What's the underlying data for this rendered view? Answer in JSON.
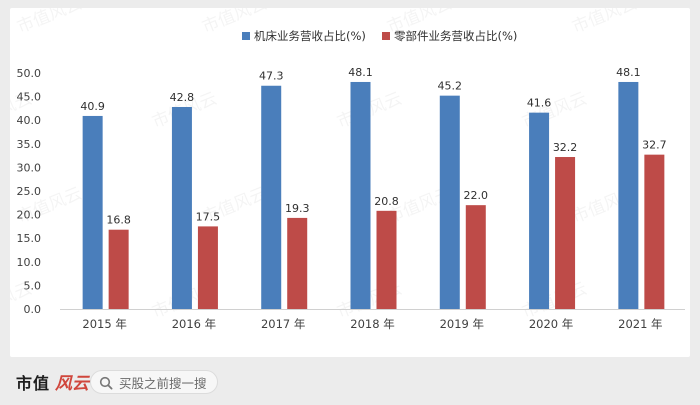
{
  "chart_data": {
    "type": "bar",
    "categories": [
      "2015 年",
      "2016 年",
      "2017 年",
      "2018 年",
      "2019 年",
      "2020 年",
      "2021 年"
    ],
    "series": [
      {
        "name": "机床业务营收占比(%)",
        "color": "#4a7ebb",
        "values": [
          40.9,
          42.8,
          47.3,
          48.1,
          45.2,
          41.6,
          48.1
        ]
      },
      {
        "name": "零部件业务营收占比(%)",
        "color": "#be4b48",
        "values": [
          16.8,
          17.5,
          19.3,
          20.8,
          22.0,
          32.2,
          32.7
        ]
      }
    ],
    "value_labels": [
      [
        "40.9",
        "42.8",
        "47.3",
        "48.1",
        "45.2",
        "41.6",
        "48.1"
      ],
      [
        "16.8",
        "17.5",
        "19.3",
        "20.8",
        "22.0",
        "32.2",
        "32.7"
      ]
    ],
    "yticks": [
      "0.0",
      "5.0",
      "10.0",
      "15.0",
      "20.0",
      "25.0",
      "30.0",
      "35.0",
      "40.0",
      "45.0",
      "50.0"
    ],
    "ylim": [
      0,
      50
    ],
    "legend_position": "top-center",
    "grid": false
  },
  "watermark": "市值风云",
  "footer": {
    "brand": "市值",
    "brand_logo": "风云",
    "search_text": "买股之前搜一搜",
    "search_icon": "search-icon"
  }
}
